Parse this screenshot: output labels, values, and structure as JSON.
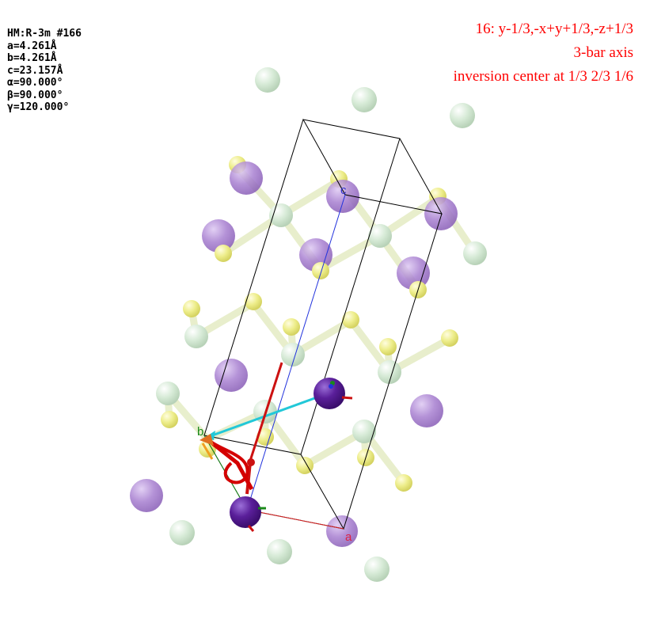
{
  "cell_info": {
    "space_group": "HM:R-3m #166",
    "a": "a=4.261Å",
    "b": "b=4.261Å",
    "c": "c=23.157Å",
    "alpha": "α=90.000°",
    "beta": "β=90.000°",
    "gamma": "γ=120.000°"
  },
  "symmetry_operation": {
    "operation": "16: y-1/3,-x+y+1/3,-z+1/3",
    "element": "3-bar axis",
    "inversion_center": "inversion center at 1/3 2/3 1/6"
  },
  "axes": {
    "a_label": "a",
    "b_label": "b",
    "c_label": "c"
  },
  "colors": {
    "annotation_red": "#ff0000",
    "axis_a": "#dd2244",
    "axis_b": "#1a8a1a",
    "axis_c": "#3333cc",
    "atom_purple": "#a77fd0",
    "atom_dark_purple": "#5a1f9a",
    "atom_yellow": "#eded8a",
    "atom_pale_green": "#d6ead6",
    "symmetry_red": "#d40000",
    "symmetry_cyan": "#22c8d8"
  }
}
